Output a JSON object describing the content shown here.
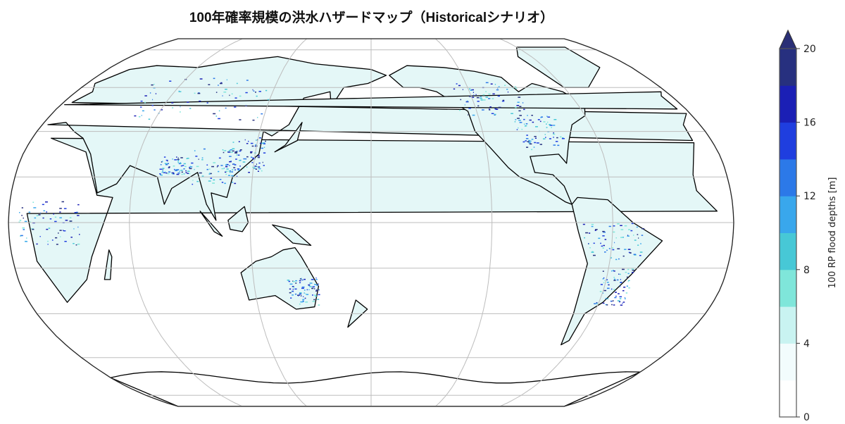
{
  "title": "100年確率規模の洪水ハザードマップ（Historicalシナリオ）",
  "map": {
    "projection": "Robinson",
    "central_longitude": 180,
    "gridlines": true,
    "land_fill": "#e4f7f7",
    "coastline_color": "#000000",
    "grid_color": "#bdbdbd"
  },
  "colorbar": {
    "label": "100 RP flood depths [m]",
    "bounds": [
      0,
      2,
      4,
      6,
      8,
      10,
      12,
      14,
      16,
      18,
      20
    ],
    "colors": [
      "#ffffff",
      "#f2fcfd",
      "#c9f3f1",
      "#7fe6da",
      "#47c8d6",
      "#39a7ec",
      "#2c79e8",
      "#1f3edf",
      "#1b1fb5",
      "#27307f"
    ],
    "extend_color": "#2a2f76",
    "extend": "max",
    "ticks": [
      "0",
      "4",
      "8",
      "12",
      "16",
      "20"
    ]
  }
}
